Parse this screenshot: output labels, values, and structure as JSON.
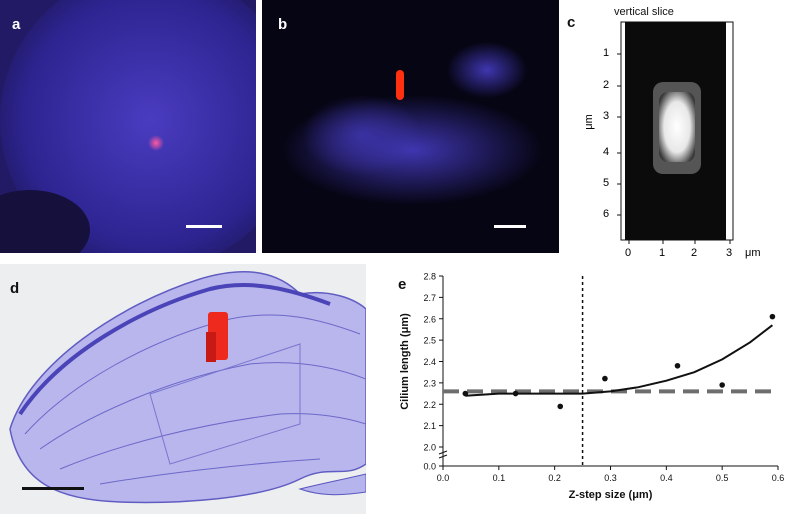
{
  "figure": {
    "panels": {
      "a": {
        "label": "a"
      },
      "b": {
        "label": "b"
      },
      "c": {
        "label": "c",
        "title": "vertical slice",
        "y_axis_label": "μm",
        "x_axis_unit": "μm",
        "y_ticks": [
          "1",
          "2",
          "3",
          "4",
          "5",
          "6"
        ],
        "x_ticks": [
          "0",
          "1",
          "2",
          "3"
        ]
      },
      "d": {
        "label": "d"
      },
      "e": {
        "label": "e"
      }
    },
    "colors": {
      "nucleus_blue": "#3a2f9a",
      "cilium_red": "#ff2020",
      "mesh_blue": "#8a86d8"
    }
  },
  "chart_data": {
    "type": "scatter",
    "xlabel": "Z-step size (μm)",
    "ylabel": "Cilium length (μm)",
    "xlim": [
      0.0,
      0.6
    ],
    "ylim": [
      0.0,
      2.8
    ],
    "axis_break": true,
    "x_ticks": [
      "0.0",
      "0.1",
      "0.2",
      "0.3",
      "0.4",
      "0.5",
      "0.6"
    ],
    "y_ticks": [
      "0.0",
      "2.0",
      "2.1",
      "2.2",
      "2.3",
      "2.4",
      "2.5",
      "2.6",
      "2.7",
      "2.8"
    ],
    "points": [
      {
        "x": 0.04,
        "y": 2.25
      },
      {
        "x": 0.13,
        "y": 2.25
      },
      {
        "x": 0.21,
        "y": 2.19
      },
      {
        "x": 0.29,
        "y": 2.32
      },
      {
        "x": 0.42,
        "y": 2.38
      },
      {
        "x": 0.5,
        "y": 2.29
      },
      {
        "x": 0.59,
        "y": 2.61
      }
    ],
    "fit_curve": [
      {
        "x": 0.04,
        "y": 2.24
      },
      {
        "x": 0.1,
        "y": 2.25
      },
      {
        "x": 0.2,
        "y": 2.25
      },
      {
        "x": 0.25,
        "y": 2.25
      },
      {
        "x": 0.3,
        "y": 2.26
      },
      {
        "x": 0.35,
        "y": 2.28
      },
      {
        "x": 0.4,
        "y": 2.31
      },
      {
        "x": 0.45,
        "y": 2.35
      },
      {
        "x": 0.5,
        "y": 2.41
      },
      {
        "x": 0.55,
        "y": 2.49
      },
      {
        "x": 0.59,
        "y": 2.57
      }
    ],
    "reference_line_y": 2.26,
    "vertical_marker_x": 0.25
  }
}
